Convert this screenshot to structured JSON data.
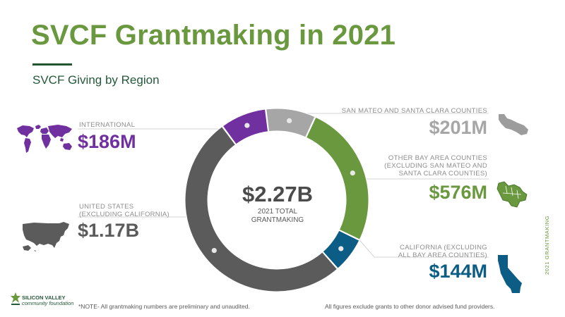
{
  "title": "SVCF Grantmaking in 2021",
  "subtitle": "SVCF Giving by Region",
  "center": {
    "value": "$2.27B",
    "caption_1": "2021 TOTAL",
    "caption_2": "GRANTMAKING"
  },
  "labels": {
    "international": {
      "caption": "INTERNATIONAL",
      "value": "$186M"
    },
    "united_states": {
      "caption_1": "UNITED STATES",
      "caption_2": "(EXCLUDING CALIFORNIA)",
      "value": "$1.17B"
    },
    "san_mateo": {
      "caption": "SAN MATEO AND SANTA CLARA COUNTIES",
      "value": "$201M"
    },
    "other_bay": {
      "caption_1": "OTHER BAY AREA COUNTIES",
      "caption_2": "(EXCLUDING SAN MATEO AND",
      "caption_3": "SANTA CLARA COUNTIES)",
      "value": "$576M"
    },
    "california": {
      "caption_1": "CALIFORNIA (EXCLUDING",
      "caption_2": "ALL BAY AREA COUNTIES)",
      "value": "$144M"
    }
  },
  "footer": {
    "note": "*NOTE- All grantmaking numbers are preliminary and unaudited.",
    "exclusion": "All figures exclude grants to other donor advised fund providers.",
    "side_label": "2021 GRANTMAKING",
    "logo_line_1": "SILICON VALLEY",
    "logo_line_2": "community foundation"
  },
  "colors": {
    "title_green": "#6a983e",
    "international": "#7030a0",
    "united_states": "#5b5b5b",
    "san_mateo": "#a6a6a6",
    "other_bay": "#6a983e",
    "california": "#0c5d86"
  },
  "icons": {
    "world": "world-map-icon",
    "usa": "usa-map-icon",
    "sm_sc": "county-map-icon",
    "bay": "bay-area-map-icon",
    "ca": "california-map-icon"
  },
  "chart_data": {
    "type": "pie",
    "variant": "donut",
    "title": "SVCF Giving by Region",
    "unit": "USD millions",
    "total": 2270,
    "slices": [
      {
        "name": "SAN MATEO AND SANTA CLARA COUNTIES",
        "value": 201,
        "color": "#a6a6a6"
      },
      {
        "name": "OTHER BAY AREA COUNTIES (EXCLUDING SAN MATEO AND SANTA CLARA COUNTIES)",
        "value": 576,
        "color": "#6a983e"
      },
      {
        "name": "CALIFORNIA (EXCLUDING ALL BAY AREA COUNTIES)",
        "value": 144,
        "color": "#0c5d86"
      },
      {
        "name": "UNITED STATES (EXCLUDING CALIFORNIA)",
        "value": 1170,
        "color": "#5b5b5b"
      },
      {
        "name": "INTERNATIONAL",
        "value": 186,
        "color": "#7030a0"
      }
    ],
    "legend": "none"
  }
}
